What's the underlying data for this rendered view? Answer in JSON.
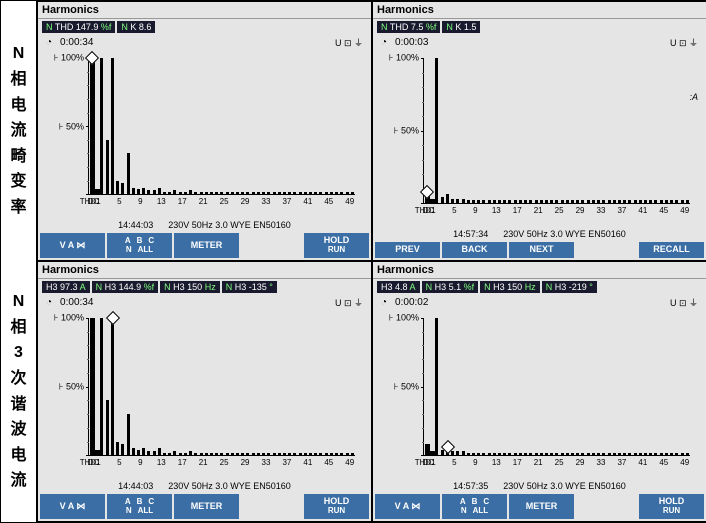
{
  "labels": {
    "row1": "N 相 电 流 畸 变 率",
    "row2": "N 相 3 次 谐 波 电 流"
  },
  "panels": [
    {
      "title": "Harmonics",
      "headerBars": [
        {
          "pre": "N",
          "label": "THD",
          "val": "147.9",
          "unit": "%f"
        },
        {
          "pre": "N",
          "label": "K",
          "val": "8.6",
          "unit": ""
        }
      ],
      "time": "0:00:34",
      "ub": "U ⊡ ⏚",
      "chart": {
        "labels": [
          "THD",
          "DC",
          "1",
          "5",
          "9",
          "13",
          "17",
          "21",
          "25",
          "29",
          "33",
          "37",
          "41",
          "45",
          "49"
        ],
        "bars": [
          100,
          4,
          100,
          40,
          100,
          10,
          8,
          30,
          5,
          4,
          5,
          3,
          3,
          5,
          2,
          2,
          3,
          2,
          2,
          3,
          2,
          2,
          2,
          2,
          2,
          2,
          2,
          2,
          2,
          2,
          2,
          2,
          2,
          2,
          2,
          2,
          2,
          2,
          2,
          2,
          2,
          2,
          2,
          2,
          2,
          2,
          2,
          2,
          2,
          2,
          2
        ],
        "diamondAt": 0,
        "wideFirst": 2
      },
      "cr": "",
      "info": {
        "t": "14:44:03",
        "r": "230V  50Hz 3.0 WYE     EN50160"
      },
      "buttons": [
        {
          "type": "van",
          "top": "V  A  ⋈"
        },
        {
          "type": "abc",
          "top": "A  B  C",
          "bot": "N  ALL"
        },
        {
          "type": "plain",
          "top": "METER"
        },
        {
          "type": "spacer"
        },
        {
          "type": "hold",
          "top": "HOLD",
          "bot": "RUN"
        }
      ]
    },
    {
      "title": "Harmonics",
      "headerBars": [
        {
          "pre": "N",
          "label": "THD",
          "val": "7.5",
          "unit": "%f"
        },
        {
          "pre": "N",
          "label": "K",
          "val": "1.5",
          "unit": ""
        }
      ],
      "time": "0:00:03",
      "ub": "U ⊡ ⏚",
      "chart": {
        "labels": [
          "THD",
          "DC",
          "1",
          "5",
          "9",
          "13",
          "17",
          "21",
          "25",
          "29",
          "33",
          "37",
          "41",
          "45",
          "49"
        ],
        "bars": [
          8,
          3,
          100,
          4,
          6,
          3,
          3,
          3,
          2,
          2,
          2,
          2,
          2,
          2,
          2,
          2,
          2,
          2,
          2,
          2,
          2,
          2,
          2,
          2,
          2,
          2,
          2,
          2,
          2,
          2,
          2,
          2,
          2,
          2,
          2,
          2,
          2,
          2,
          2,
          2,
          2,
          2,
          2,
          2,
          2,
          2,
          2,
          2,
          2,
          2,
          2
        ],
        "diamondAt": 0,
        "wideFirst": 2
      },
      "cr": ":A",
      "info": {
        "t": "14:57:34",
        "r": "230V  50Hz 3.0 WYE     EN50160"
      },
      "buttons": [
        {
          "type": "plain",
          "top": "PREV"
        },
        {
          "type": "plain",
          "top": "BACK"
        },
        {
          "type": "plain",
          "top": "NEXT"
        },
        {
          "type": "spacer"
        },
        {
          "type": "plain",
          "top": "RECALL"
        }
      ]
    },
    {
      "title": "Harmonics",
      "headerBars": [
        {
          "pre": "",
          "label": "H3",
          "val": "97.3",
          "unit": "A"
        },
        {
          "pre": "N",
          "label": "H3",
          "val": "144.9",
          "unit": "%f"
        },
        {
          "pre": "N",
          "label": "H3",
          "val": "150",
          "unit": "Hz"
        },
        {
          "pre": "N",
          "label": "H3",
          "val": "-135",
          "unit": "°"
        }
      ],
      "time": "0:00:34",
      "ub": "U ⊡ ⏚",
      "chart": {
        "labels": [
          "THD",
          "DC",
          "1",
          "5",
          "9",
          "13",
          "17",
          "21",
          "25",
          "29",
          "33",
          "37",
          "41",
          "45",
          "49"
        ],
        "bars": [
          100,
          4,
          100,
          40,
          100,
          10,
          8,
          30,
          5,
          4,
          5,
          3,
          3,
          5,
          2,
          2,
          3,
          2,
          2,
          3,
          2,
          2,
          2,
          2,
          2,
          2,
          2,
          2,
          2,
          2,
          2,
          2,
          2,
          2,
          2,
          2,
          2,
          2,
          2,
          2,
          2,
          2,
          2,
          2,
          2,
          2,
          2,
          2,
          2,
          2,
          2
        ],
        "diamondAt": 4,
        "wideFirst": 2
      },
      "cr": "",
      "info": {
        "t": "14:44:03",
        "r": "230V  50Hz 3.0 WYE     EN50160"
      },
      "buttons": [
        {
          "type": "van",
          "top": "V  A  ⋈"
        },
        {
          "type": "abc",
          "top": "A  B  C",
          "bot": "N  ALL"
        },
        {
          "type": "plain",
          "top": "METER"
        },
        {
          "type": "spacer"
        },
        {
          "type": "hold",
          "top": "HOLD",
          "bot": "RUN"
        }
      ]
    },
    {
      "title": "Harmonics",
      "headerBars": [
        {
          "pre": "",
          "label": "H3",
          "val": "4.8",
          "unit": "A"
        },
        {
          "pre": "N",
          "label": "H3",
          "val": "5.1",
          "unit": "%f"
        },
        {
          "pre": "N",
          "label": "H3",
          "val": "150",
          "unit": "Hz"
        },
        {
          "pre": "N",
          "label": "H3",
          "val": "-219",
          "unit": "°"
        }
      ],
      "time": "0:00:02",
      "ub": "U ⊡ ⏚",
      "chart": {
        "labels": [
          "THD",
          "DC",
          "1",
          "5",
          "9",
          "13",
          "17",
          "21",
          "25",
          "29",
          "33",
          "37",
          "41",
          "45",
          "49"
        ],
        "bars": [
          8,
          3,
          100,
          4,
          6,
          3,
          3,
          3,
          2,
          2,
          2,
          2,
          2,
          2,
          2,
          2,
          2,
          2,
          2,
          2,
          2,
          2,
          2,
          2,
          2,
          2,
          2,
          2,
          2,
          2,
          2,
          2,
          2,
          2,
          2,
          2,
          2,
          2,
          2,
          2,
          2,
          2,
          2,
          2,
          2,
          2,
          2,
          2,
          2,
          2,
          2
        ],
        "diamondAt": 4,
        "wideFirst": 2
      },
      "cr": "",
      "info": {
        "t": "14:57:35",
        "r": "230V  50Hz 3.0 WYE     EN50160"
      },
      "buttons": [
        {
          "type": "van",
          "top": "V  A  ⋈"
        },
        {
          "type": "abc",
          "top": "A  B  C",
          "bot": "N  ALL"
        },
        {
          "type": "plain",
          "top": "METER"
        },
        {
          "type": "spacer"
        },
        {
          "type": "hold",
          "top": "HOLD",
          "bot": "RUN"
        }
      ]
    }
  ]
}
